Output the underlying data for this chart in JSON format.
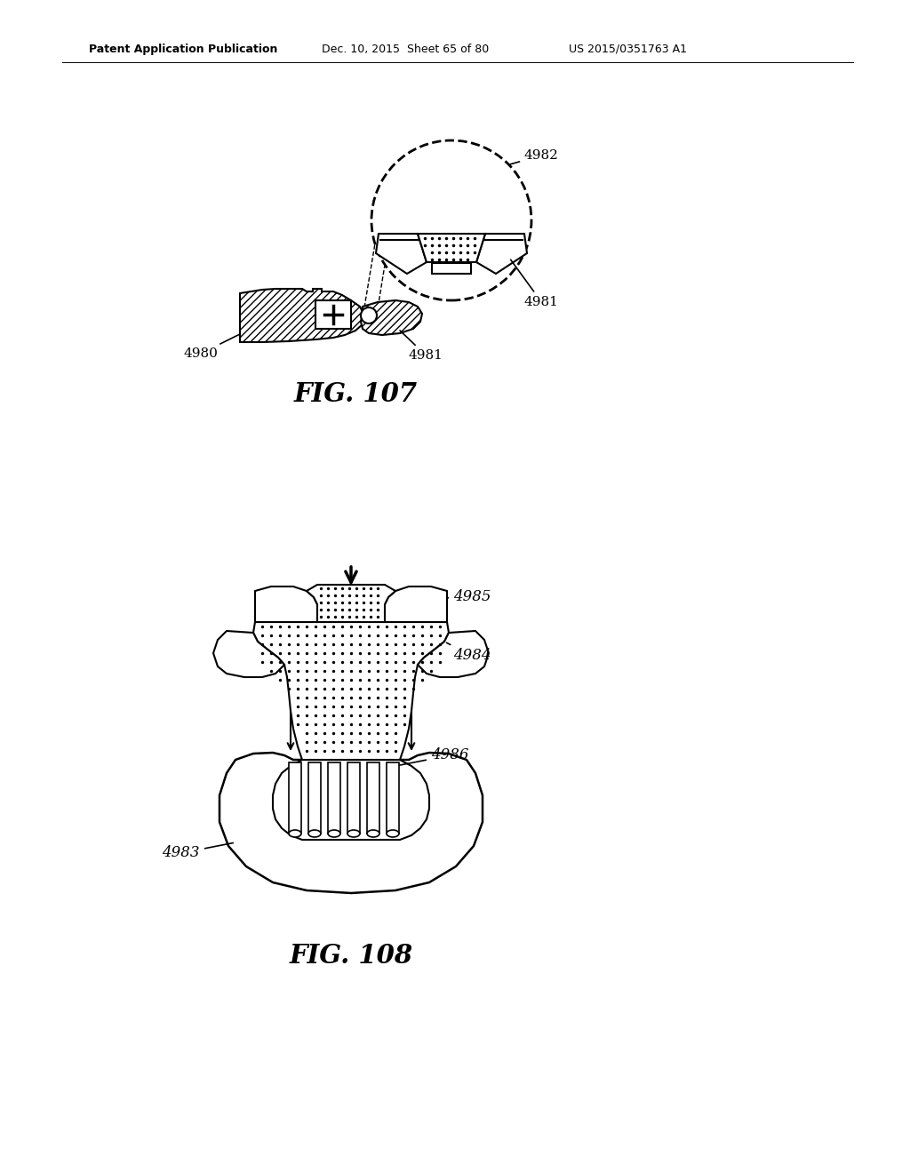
{
  "bg_color": "#ffffff",
  "header_left": "Patent Application Publication",
  "header_mid": "Dec. 10, 2015  Sheet 65 of 80",
  "header_right": "US 2015/0351763 A1",
  "fig107_label": "FIG. 107",
  "fig108_label": "FIG. 108"
}
